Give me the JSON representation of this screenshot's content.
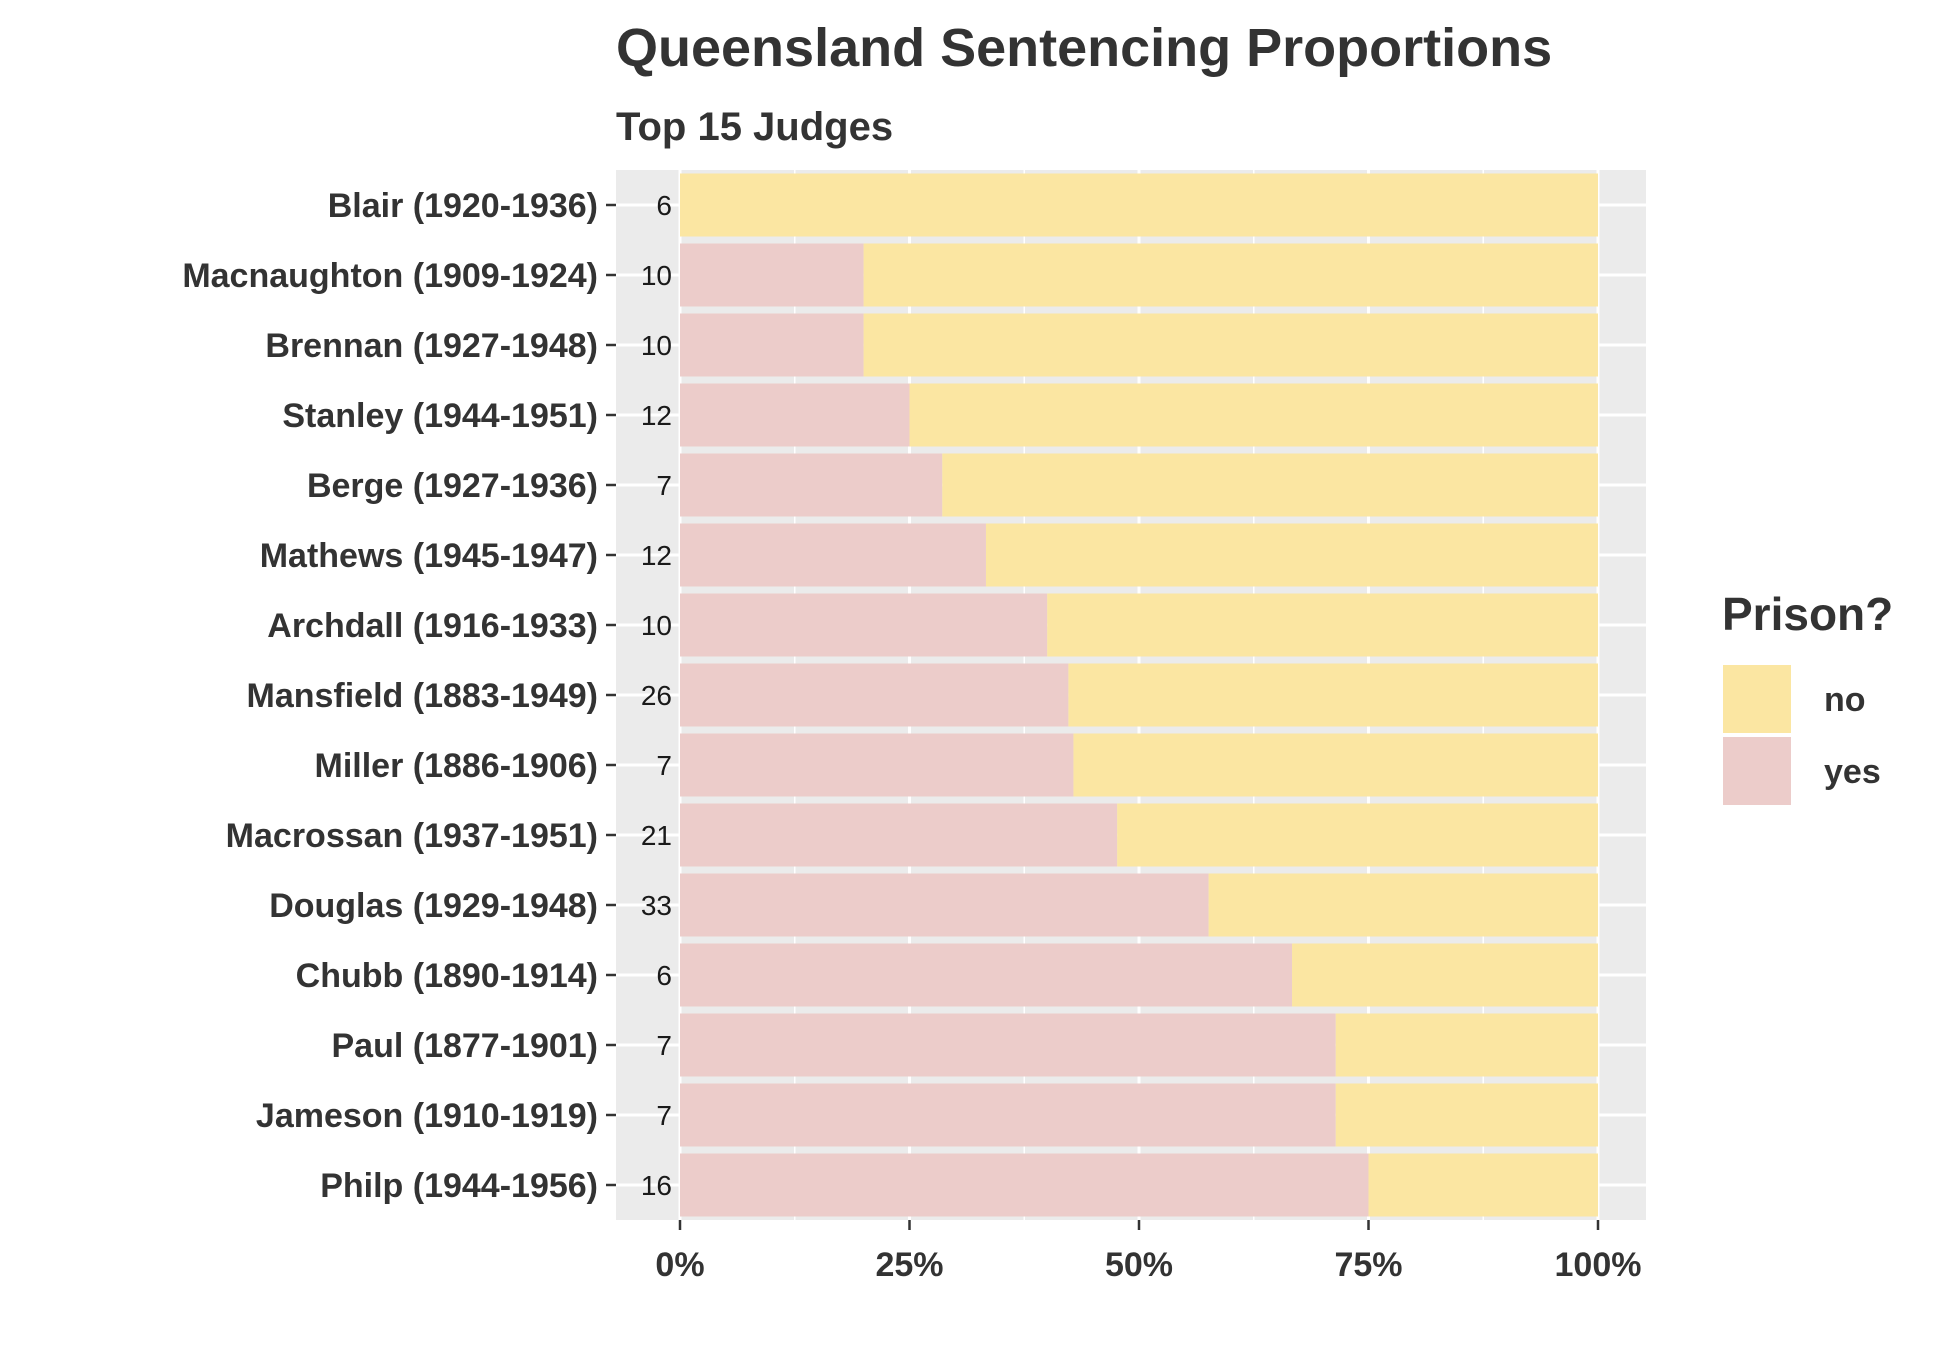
{
  "chart_data": {
    "type": "bar",
    "orientation": "horizontal",
    "stacked": "percent",
    "title": "Queensland Sentencing Proportions",
    "subtitle": "Top 15 Judges",
    "xlim": [
      0,
      1
    ],
    "x_ticks": [
      "0%",
      "25%",
      "50%",
      "75%",
      "100%"
    ],
    "grid": true,
    "legend": {
      "title": "Prison?",
      "position": "right",
      "entries": [
        {
          "label": "no",
          "color": "#fbe6a2"
        },
        {
          "label": "yes",
          "color": "#ecccca"
        }
      ]
    },
    "categories": [
      "Blair (1920-1936)",
      "Macnaughton (1909-1924)",
      "Brennan (1927-1948)",
      "Stanley (1944-1951)",
      "Berge (1927-1936)",
      "Mathews (1945-1947)",
      "Archdall (1916-1933)",
      "Mansfield (1883-1949)",
      "Miller (1886-1906)",
      "Macrossan (1937-1951)",
      "Douglas (1929-1948)",
      "Chubb (1890-1914)",
      "Paul (1877-1901)",
      "Jameson (1910-1919)",
      "Philp (1944-1956)"
    ],
    "counts": [
      "6",
      "10",
      "10",
      "12",
      "7",
      "12",
      "10",
      "26",
      "7",
      "21",
      "33",
      "6",
      "7",
      "7",
      "16"
    ],
    "series": [
      {
        "name": "yes",
        "values": [
          0,
          0.2,
          0.2,
          0.25,
          0.2857,
          0.3333,
          0.4,
          0.4231,
          0.4286,
          0.4762,
          0.5758,
          0.6667,
          0.7143,
          0.7143,
          0.75
        ]
      },
      {
        "name": "no",
        "values": [
          1,
          0.8,
          0.8,
          0.75,
          0.7143,
          0.6667,
          0.6,
          0.5769,
          0.5714,
          0.5238,
          0.4242,
          0.3333,
          0.2857,
          0.2857,
          0.25
        ]
      }
    ]
  }
}
